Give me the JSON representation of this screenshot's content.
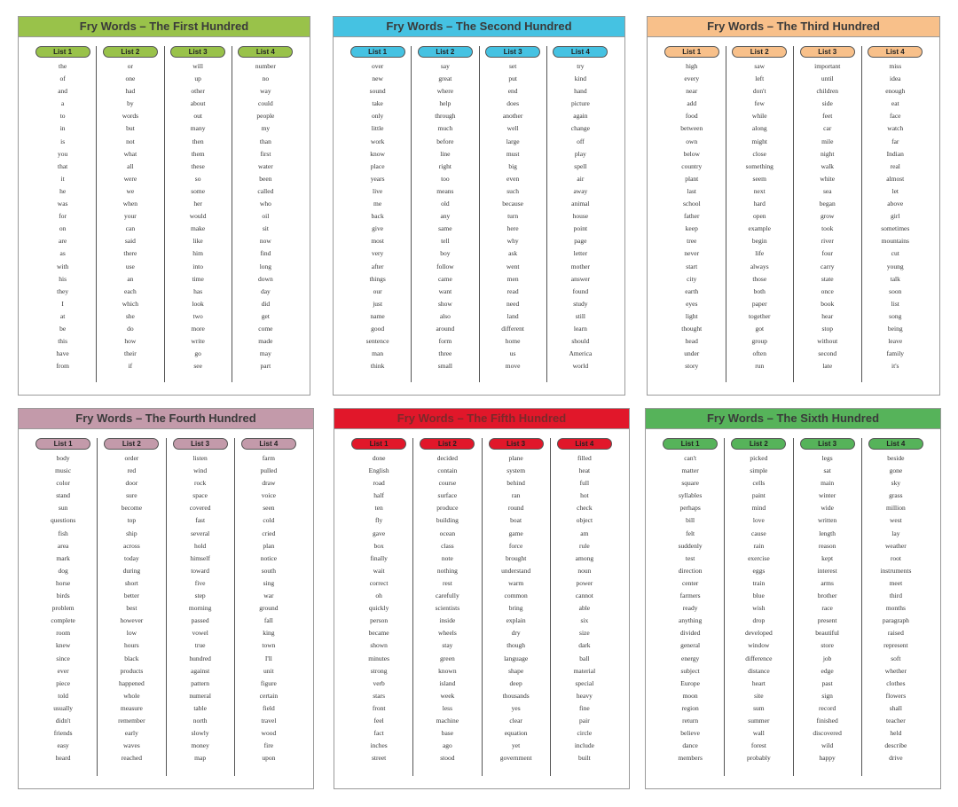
{
  "cards": [
    {
      "key": "first",
      "title": "Fry Words – The First Hundred",
      "title_color": "#99c24a",
      "pill_color": "#99c24a",
      "lists": [
        {
          "label": "List 1",
          "words": [
            "the",
            "of",
            "and",
            "a",
            "to",
            "in",
            "is",
            "you",
            "that",
            "it",
            "he",
            "was",
            "for",
            "on",
            "are",
            "as",
            "with",
            "his",
            "they",
            "I",
            "at",
            "be",
            "this",
            "have",
            "from"
          ]
        },
        {
          "label": "List 2",
          "words": [
            "or",
            "one",
            "had",
            "by",
            "words",
            "but",
            "not",
            "what",
            "all",
            "were",
            "we",
            "when",
            "your",
            "can",
            "said",
            "there",
            "use",
            "an",
            "each",
            "which",
            "she",
            "do",
            "how",
            "their",
            "if"
          ]
        },
        {
          "label": "List 3",
          "words": [
            "will",
            "up",
            "other",
            "about",
            "out",
            "many",
            "then",
            "them",
            "these",
            "so",
            "some",
            "her",
            "would",
            "make",
            "like",
            "him",
            "into",
            "time",
            "has",
            "look",
            "two",
            "more",
            "write",
            "go",
            "see"
          ]
        },
        {
          "label": "List 4",
          "words": [
            "number",
            "no",
            "way",
            "could",
            "people",
            "my",
            "than",
            "first",
            "water",
            "been",
            "called",
            "who",
            "oil",
            "sit",
            "now",
            "find",
            "long",
            "down",
            "day",
            "did",
            "get",
            "come",
            "made",
            "may",
            "part"
          ]
        }
      ]
    },
    {
      "key": "second",
      "title": "Fry Words – The Second Hundred",
      "title_color": "#45c2e2",
      "pill_color": "#45c2e2",
      "lists": [
        {
          "label": "List 1",
          "words": [
            "over",
            "new",
            "sound",
            "take",
            "only",
            "little",
            "work",
            "know",
            "place",
            "years",
            "live",
            "me",
            "back",
            "give",
            "most",
            "very",
            "after",
            "things",
            "our",
            "just",
            "name",
            "good",
            "sentence",
            "man",
            "think"
          ]
        },
        {
          "label": "List 2",
          "words": [
            "say",
            "great",
            "where",
            "help",
            "through",
            "much",
            "before",
            "line",
            "right",
            "too",
            "means",
            "old",
            "any",
            "same",
            "tell",
            "boy",
            "follow",
            "came",
            "want",
            "show",
            "also",
            "around",
            "form",
            "three",
            "small"
          ]
        },
        {
          "label": "List 3",
          "words": [
            "set",
            "put",
            "end",
            "does",
            "another",
            "well",
            "large",
            "must",
            "big",
            "even",
            "such",
            "because",
            "turn",
            "here",
            "why",
            "ask",
            "went",
            "men",
            "read",
            "need",
            "land",
            "different",
            "home",
            "us",
            "move"
          ]
        },
        {
          "label": "List 4",
          "words": [
            "try",
            "kind",
            "hand",
            "picture",
            "again",
            "change",
            "off",
            "play",
            "spell",
            "air",
            "away",
            "animal",
            "house",
            "point",
            "page",
            "letter",
            "mother",
            "answer",
            "found",
            "study",
            "still",
            "learn",
            "should",
            "America",
            "world"
          ]
        }
      ]
    },
    {
      "key": "third",
      "title": "Fry Words – The Third Hundred",
      "title_color": "#f8c08a",
      "pill_color": "#f8c08a",
      "lists": [
        {
          "label": "List 1",
          "words": [
            "high",
            "every",
            "near",
            "add",
            "food",
            "between",
            "own",
            "below",
            "country",
            "plant",
            "last",
            "school",
            "father",
            "keep",
            "tree",
            "never",
            "start",
            "city",
            "earth",
            "eyes",
            "light",
            "thought",
            "head",
            "under",
            "story"
          ]
        },
        {
          "label": "List 2",
          "words": [
            "saw",
            "left",
            "don't",
            "few",
            "while",
            "along",
            "might",
            "close",
            "something",
            "seem",
            "next",
            "hard",
            "open",
            "example",
            "begin",
            "life",
            "always",
            "those",
            "both",
            "paper",
            "together",
            "got",
            "group",
            "often",
            "run"
          ]
        },
        {
          "label": "List 3",
          "words": [
            "important",
            "until",
            "children",
            "side",
            "feet",
            "car",
            "mile",
            "night",
            "walk",
            "white",
            "sea",
            "began",
            "grow",
            "took",
            "river",
            "four",
            "carry",
            "state",
            "once",
            "book",
            "hear",
            "stop",
            "without",
            "second",
            "late"
          ]
        },
        {
          "label": "List 4",
          "words": [
            "miss",
            "idea",
            "enough",
            "eat",
            "face",
            "watch",
            "far",
            "Indian",
            "real",
            "almost",
            "let",
            "above",
            "girl",
            "sometimes",
            "mountains",
            "cut",
            "young",
            "talk",
            "soon",
            "list",
            "song",
            "being",
            "leave",
            "family",
            "it's"
          ]
        }
      ]
    },
    {
      "key": "fourth",
      "title": "Fry Words – The Fourth Hundred",
      "title_color": "#c39aaa",
      "pill_color": "#c39aaa",
      "lists": [
        {
          "label": "List 1",
          "words": [
            "body",
            "music",
            "color",
            "stand",
            "sun",
            "questions",
            "fish",
            "area",
            "mark",
            "dog",
            "horse",
            "birds",
            "problem",
            "complete",
            "room",
            "knew",
            "since",
            "ever",
            "piece",
            "told",
            "usually",
            "didn't",
            "friends",
            "easy",
            "heard"
          ]
        },
        {
          "label": "List 2",
          "words": [
            "order",
            "red",
            "door",
            "sure",
            "become",
            "top",
            "ship",
            "across",
            "today",
            "during",
            "short",
            "better",
            "best",
            "however",
            "low",
            "hours",
            "black",
            "products",
            "happened",
            "whole",
            "measure",
            "remember",
            "early",
            "waves",
            "reached"
          ]
        },
        {
          "label": "List 3",
          "words": [
            "listen",
            "wind",
            "rock",
            "space",
            "covered",
            "fast",
            "several",
            "hold",
            "himself",
            "toward",
            "five",
            "step",
            "morning",
            "passed",
            "vowel",
            "true",
            "hundred",
            "against",
            "pattern",
            "numeral",
            "table",
            "north",
            "slowly",
            "money",
            "map"
          ]
        },
        {
          "label": "List 4",
          "words": [
            "farm",
            "pulled",
            "draw",
            "voice",
            "seen",
            "cold",
            "cried",
            "plan",
            "notice",
            "south",
            "sing",
            "war",
            "ground",
            "fall",
            "king",
            "town",
            "I'll",
            "unit",
            "figure",
            "certain",
            "field",
            "travel",
            "wood",
            "fire",
            "upon"
          ]
        }
      ]
    },
    {
      "key": "fifth",
      "title": "Fry Words – The Fifth Hundred",
      "title_color": "#e1172a",
      "pill_color": "#e1172a",
      "lists": [
        {
          "label": "List 1",
          "words": [
            "done",
            "English",
            "road",
            "half",
            "ten",
            "fly",
            "gave",
            "box",
            "finally",
            "wait",
            "correct",
            "oh",
            "quickly",
            "person",
            "became",
            "shown",
            "minutes",
            "strong",
            "verb",
            "stars",
            "front",
            "feel",
            "fact",
            "inches",
            "street"
          ]
        },
        {
          "label": "List 2",
          "words": [
            "decided",
            "contain",
            "course",
            "surface",
            "produce",
            "building",
            "ocean",
            "class",
            "note",
            "nothing",
            "rest",
            "carefully",
            "scientists",
            "inside",
            "wheels",
            "stay",
            "green",
            "known",
            "island",
            "week",
            "less",
            "machine",
            "base",
            "ago",
            "stood"
          ]
        },
        {
          "label": "List 3",
          "words": [
            "plane",
            "system",
            "behind",
            "ran",
            "round",
            "boat",
            "game",
            "force",
            "brought",
            "understand",
            "warm",
            "common",
            "bring",
            "explain",
            "dry",
            "though",
            "language",
            "shape",
            "deep",
            "thousands",
            "yes",
            "clear",
            "equation",
            "yet",
            "government"
          ]
        },
        {
          "label": "List 4",
          "words": [
            "filled",
            "heat",
            "full",
            "hot",
            "check",
            "object",
            "am",
            "rule",
            "among",
            "noun",
            "power",
            "cannot",
            "able",
            "six",
            "size",
            "dark",
            "ball",
            "material",
            "special",
            "heavy",
            "fine",
            "pair",
            "circle",
            "include",
            "built"
          ]
        }
      ]
    },
    {
      "key": "sixth",
      "title": "Fry Words – The Sixth Hundred",
      "title_color": "#56b35a",
      "pill_color": "#56b35a",
      "lists": [
        {
          "label": "List 1",
          "words": [
            "can't",
            "matter",
            "square",
            "syllables",
            "perhaps",
            "bill",
            "felt",
            "suddenly",
            "test",
            "direction",
            "center",
            "farmers",
            "ready",
            "anything",
            "divided",
            "general",
            "energy",
            "subject",
            "Europe",
            "moon",
            "region",
            "return",
            "believe",
            "dance",
            "members"
          ]
        },
        {
          "label": "List 2",
          "words": [
            "picked",
            "simple",
            "cells",
            "paint",
            "mind",
            "love",
            "cause",
            "rain",
            "exercise",
            "eggs",
            "train",
            "blue",
            "wish",
            "drop",
            "developed",
            "window",
            "difference",
            "distance",
            "heart",
            "site",
            "sum",
            "summer",
            "wall",
            "forest",
            "probably"
          ]
        },
        {
          "label": "List 3",
          "words": [
            "legs",
            "sat",
            "main",
            "winter",
            "wide",
            "written",
            "length",
            "reason",
            "kept",
            "interest",
            "arms",
            "brother",
            "race",
            "present",
            "beautiful",
            "store",
            "job",
            "edge",
            "past",
            "sign",
            "record",
            "finished",
            "discovered",
            "wild",
            "happy"
          ]
        },
        {
          "label": "List 4",
          "words": [
            "beside",
            "gone",
            "sky",
            "grass",
            "million",
            "west",
            "lay",
            "weather",
            "root",
            "instruments",
            "meet",
            "third",
            "months",
            "paragraph",
            "raised",
            "represent",
            "soft",
            "whether",
            "clothes",
            "flowers",
            "shall",
            "teacher",
            "held",
            "describe",
            "drive"
          ]
        }
      ]
    }
  ]
}
